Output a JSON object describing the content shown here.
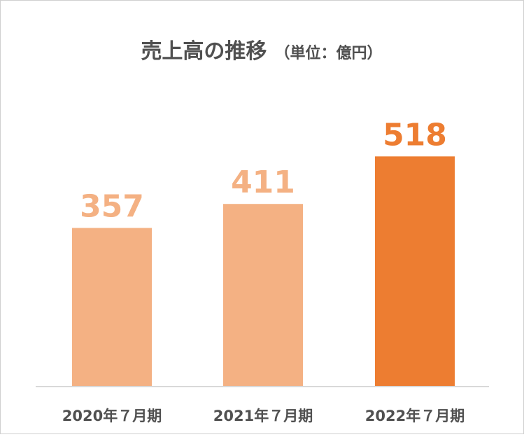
{
  "chart_data": {
    "type": "bar",
    "title": "売上高の推移",
    "subtitle": "（単位：億円）",
    "categories": [
      "2020年７月期",
      "2021年７月期",
      "2022年７月期"
    ],
    "values": [
      357,
      411,
      518
    ],
    "data_labels": [
      "357",
      "411",
      "518"
    ],
    "ylim": [
      0,
      600
    ],
    "grid": false,
    "legend": "none",
    "colors": [
      "#F4B183",
      "#F4B183",
      "#ED7D31"
    ]
  }
}
